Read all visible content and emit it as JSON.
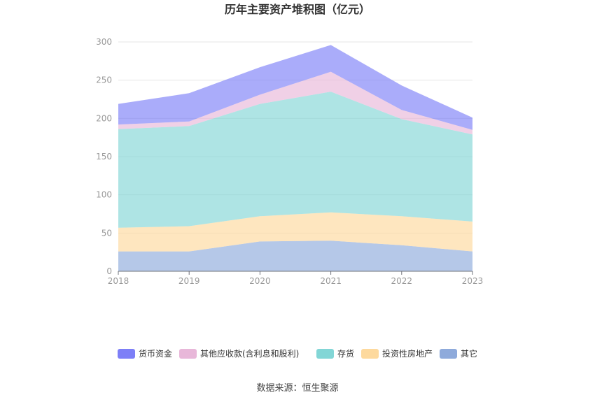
{
  "chart_data": {
    "type": "area",
    "stacked": true,
    "title": "历年主要资产堆积图（亿元）",
    "x": [
      "2018",
      "2019",
      "2020",
      "2021",
      "2022",
      "2023"
    ],
    "ylim": [
      0,
      300
    ],
    "yticks": [
      "0",
      "50",
      "100",
      "150",
      "200",
      "250",
      "300"
    ],
    "grid": true,
    "legend_position": "bottom",
    "series": [
      {
        "name": "其它",
        "color": "#8eaadb",
        "values": [
          26,
          26,
          39,
          40,
          34,
          26
        ]
      },
      {
        "name": "投资性房地产",
        "color": "#fdd99d",
        "values": [
          31,
          33,
          33,
          37,
          38,
          39
        ]
      },
      {
        "name": "存货",
        "color": "#82d6d6",
        "values": [
          129,
          131,
          147,
          158,
          127,
          114
        ]
      },
      {
        "name": "其他应收款(含利息和股利)",
        "color": "#e8b7d9",
        "values": [
          6,
          6,
          12,
          26,
          12,
          6
        ]
      },
      {
        "name": "货币资金",
        "color": "#7d7ff7",
        "values": [
          27,
          37,
          36,
          35,
          32,
          16
        ]
      }
    ],
    "legend_order": [
      "货币资金",
      "其他应收款(含利息和股利)",
      "存货",
      "投资性房地产",
      "其它"
    ]
  },
  "source": "数据来源：恒生聚源"
}
